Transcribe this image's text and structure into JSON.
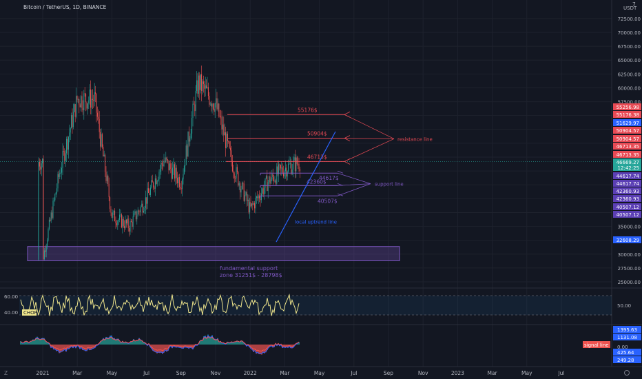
{
  "header": {
    "title": "Bitcoin / TetherUS, 1D, BINANCE",
    "currency": "USDT",
    "currency_marker": "7"
  },
  "price_axis": {
    "ticks": [
      "72500.00",
      "70000.00",
      "67500.00",
      "65000.00",
      "62500.00",
      "60000.00",
      "57500.00",
      "35000.00",
      "30000.00",
      "27500.00",
      "25000.00"
    ],
    "tags": [
      {
        "text": "55256.98",
        "color": "#e84a54"
      },
      {
        "text": "55176.38",
        "color": "#e84a54"
      },
      {
        "text": "51629.97",
        "color": "#2962ff"
      },
      {
        "text": "50904.57",
        "color": "#e84a54"
      },
      {
        "text": "50904.57",
        "color": "#e84a54"
      },
      {
        "text": "46713.35",
        "color": "#e84a54"
      },
      {
        "text": "46713.35",
        "color": "#e84a54"
      },
      {
        "text": "46669.27",
        "color": "#26a69a"
      },
      {
        "text": "12:42:25",
        "color": "#26a69a"
      },
      {
        "text": "44617.74",
        "color": "#5b3fb5"
      },
      {
        "text": "44617.74",
        "color": "#5b3fb5"
      },
      {
        "text": "42360.93",
        "color": "#5b3fb5"
      },
      {
        "text": "42360.93",
        "color": "#5b3fb5"
      },
      {
        "text": "40507.12",
        "color": "#5b3fb5"
      },
      {
        "text": "40507.12",
        "color": "#5b3fb5"
      },
      {
        "text": "32608.29",
        "color": "#2962ff"
      }
    ]
  },
  "chart_data": [
    {
      "type": "candlestick",
      "title": "Bitcoin / TetherUS, 1D, BINANCE",
      "y_axis_unit": "USDT",
      "ylim": [
        23000,
        75000
      ],
      "approximate_close_path": [
        {
          "x": "2021-01",
          "y": 29000
        },
        {
          "x": "2021-02",
          "y": 45000
        },
        {
          "x": "2021-03",
          "y": 58000
        },
        {
          "x": "2021-04",
          "y": 58000
        },
        {
          "x": "2021-05",
          "y": 37000
        },
        {
          "x": "2021-06",
          "y": 35000
        },
        {
          "x": "2021-07",
          "y": 40000
        },
        {
          "x": "2021-08",
          "y": 47000
        },
        {
          "x": "2021-09",
          "y": 43000
        },
        {
          "x": "2021-10",
          "y": 61000
        },
        {
          "x": "2021-11",
          "y": 57000
        },
        {
          "x": "2021-12",
          "y": 46000
        },
        {
          "x": "2022-01",
          "y": 38000
        },
        {
          "x": "2022-02",
          "y": 43000
        },
        {
          "x": "2022-03",
          "y": 45500
        },
        {
          "x": "2022-03-28",
          "y": 46669.27
        }
      ],
      "annotations": {
        "resistance_levels": [
          {
            "label": "55176$",
            "value": 55176
          },
          {
            "label": "50904$",
            "value": 50904
          },
          {
            "label": "46713$",
            "value": 46713
          }
        ],
        "resistance_caption": "resistance line",
        "support_levels": [
          {
            "label": "44617$",
            "value": 44617
          },
          {
            "label": "42360$",
            "value": 42360
          },
          {
            "label": "40507$",
            "value": 40507
          }
        ],
        "support_caption": "support line",
        "trend_line_caption": "local uptrend line",
        "fundamental_zone": {
          "line1": "fundamental support",
          "line2": "zone  31251$ - 28798$",
          "low": 28798,
          "high": 31251
        }
      }
    },
    {
      "type": "line",
      "name": "CHOP",
      "ylim": [
        30,
        70
      ],
      "levels": [
        "60.00",
        "40.00"
      ],
      "right_label": "50.00"
    },
    {
      "type": "histogram",
      "name": "signal line",
      "tags": [
        {
          "text": "1395.63",
          "color": "#2962ff"
        },
        {
          "text": "1131.08",
          "color": "#2962ff"
        },
        {
          "text": "0.00",
          "color": "#131722"
        },
        {
          "text": "425.64",
          "color": "#2962ff"
        },
        {
          "text": "249.28",
          "color": "#2962ff"
        }
      ]
    }
  ],
  "time_axis": {
    "labels": [
      "2021",
      "Mar",
      "May",
      "Jul",
      "Sep",
      "Nov",
      "2022",
      "Mar",
      "May",
      "Jul",
      "Sep",
      "Nov",
      "2023",
      "Mar",
      "May",
      "Jul"
    ]
  },
  "toolbar": {
    "left_icon": "zoom-icon",
    "right_icon": "settings-icon"
  },
  "colors": {
    "bg": "#131722",
    "up": "#26a69a",
    "down": "#ef5350",
    "resistance": "#e84a54",
    "support": "#7e57c2",
    "trend": "#2962ff",
    "chop": "#f0e68c"
  }
}
